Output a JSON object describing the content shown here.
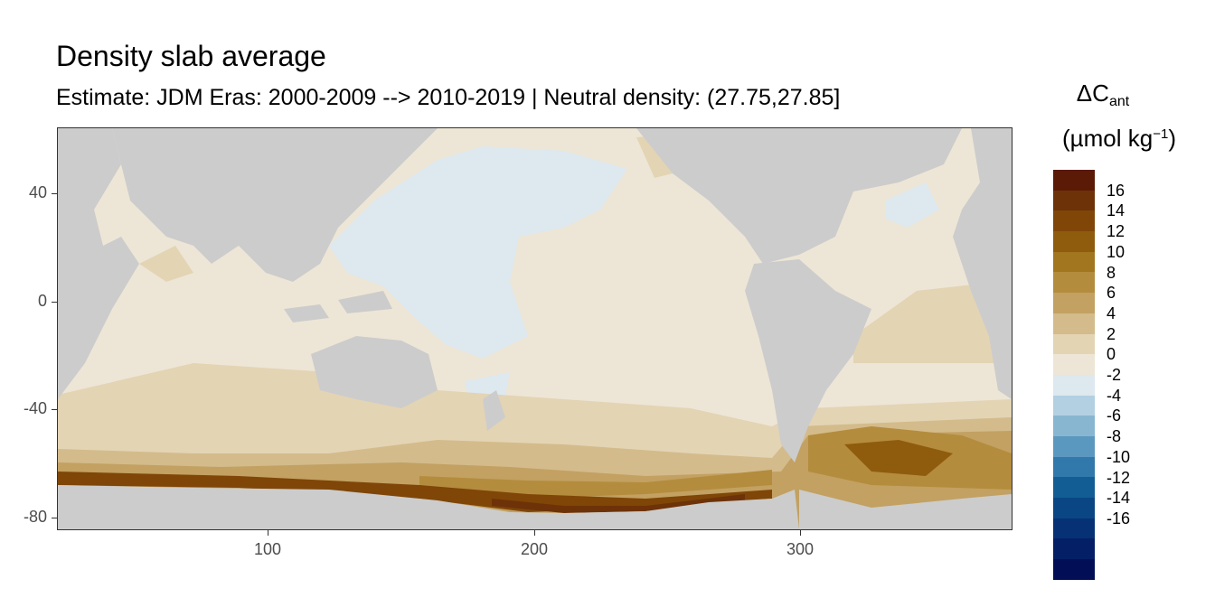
{
  "title": "Density slab average",
  "subtitle": "Estimate: JDM Eras: 2000-2009 --> 2010-2019 | Neutral density: (27.75,27.85]",
  "axes": {
    "x_ticks": [
      "100",
      "200",
      "300"
    ],
    "y_ticks": [
      "40",
      "0",
      "-40",
      "-80"
    ]
  },
  "legend": {
    "title_main": "ΔC",
    "title_sub": "ant",
    "unit_main": "(µmol kg",
    "unit_sup": "−1",
    "unit_close": ")",
    "labels": [
      "16",
      "14",
      "12",
      "10",
      "8",
      "6",
      "4",
      "2",
      "0",
      "-2",
      "-4",
      "-6",
      "-8",
      "-10",
      "-12",
      "-14",
      "-16"
    ],
    "colors": [
      "#5a1a05",
      "#6e3208",
      "#7f4608",
      "#8f5c0e",
      "#a2761e",
      "#b48c3d",
      "#c2a162",
      "#d3bb8b",
      "#e3d4b4",
      "#ede6d6",
      "#dde8ef",
      "#b3d0e2",
      "#88b6d1",
      "#5b98bf",
      "#3079aa",
      "#135d95",
      "#0a4684",
      "#063275",
      "#041f66",
      "#020f57"
    ]
  },
  "map_colors": {
    "land": "#cccccc",
    "value_0_2": "#ede6d6",
    "value_2_4": "#e3d4b4",
    "value_4_6": "#d3bb8b",
    "value_6_8": "#c2a162",
    "value_8_10": "#b48c3d",
    "value_10_12": "#a2761e",
    "value_12_14": "#8f5c0e",
    "value_14_16": "#6e3208",
    "value_16_18": "#5a1a05",
    "value_neg2_0": "#dde8ef"
  }
}
